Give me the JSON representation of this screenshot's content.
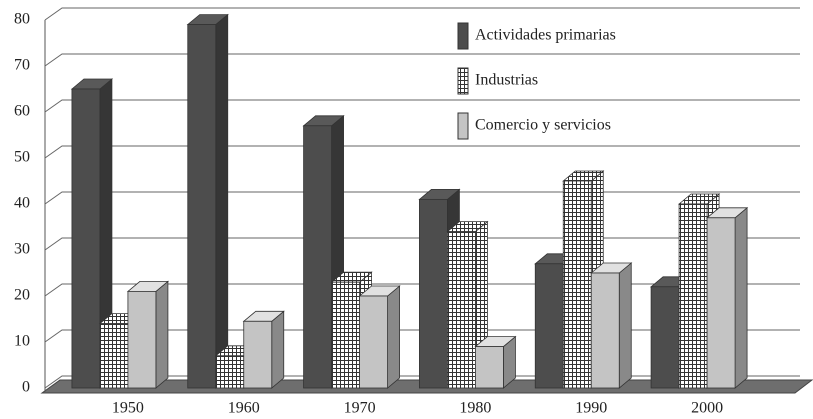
{
  "chart_data": {
    "type": "bar3d",
    "categories": [
      "1950",
      "1960",
      "1970",
      "1980",
      "1990",
      "2000"
    ],
    "series": [
      {
        "name": "Actividades primarias",
        "color": "#4d4d4d",
        "pattern": "solid",
        "values": [
          65,
          79,
          57,
          41,
          27,
          22
        ]
      },
      {
        "name": "Industrias",
        "color": "#ffffff",
        "pattern": "grid",
        "values": [
          14,
          7,
          23,
          34,
          45,
          40
        ]
      },
      {
        "name": "Comercio y servicios",
        "color": "#c4c4c4",
        "pattern": "solid",
        "values": [
          21,
          14.5,
          20,
          9,
          25,
          37
        ]
      }
    ],
    "ylim": [
      0,
      80
    ],
    "yticks": [
      0,
      10,
      20,
      30,
      40,
      50,
      60,
      70,
      80
    ],
    "grid": true,
    "legend": "top-right"
  }
}
